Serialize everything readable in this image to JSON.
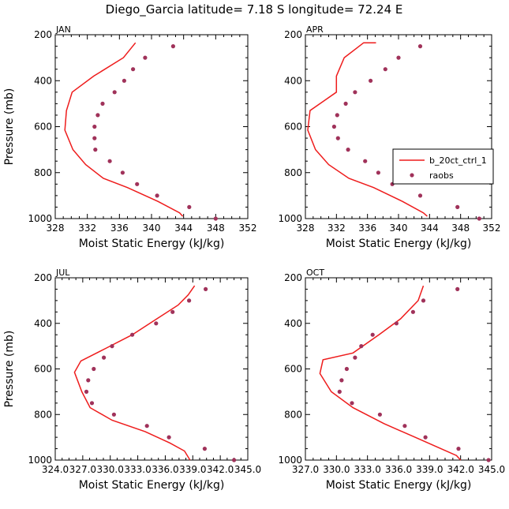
{
  "title": "Diego_Garcia  latitude= 7.18 S longitude= 72.24 E",
  "colors": {
    "model": "#ee1c1c",
    "obs": "#a0325a",
    "axis": "#000000"
  },
  "legend": {
    "model_label": "b_20ct_ctrl_1",
    "obs_label": "raobs",
    "placement": "right, inside APR panel"
  },
  "chart_data": [
    {
      "type": "line",
      "panel": "JAN",
      "xlabel": "Moist Static Energy (kJ/kg)",
      "ylabel": "Pressure (mb)",
      "xlim": [
        328,
        352
      ],
      "ylim": [
        1000,
        200
      ],
      "y_reversed": true,
      "xticks": [
        328,
        332,
        336,
        340,
        344,
        348,
        352
      ],
      "xtick_labels": [
        "328",
        "332",
        "336",
        "340",
        "344",
        "348",
        "352"
      ],
      "yticks": [
        200,
        400,
        600,
        800,
        1000
      ],
      "ytick_labels": [
        "200",
        "400",
        "600",
        "800",
        "1000"
      ],
      "series": [
        {
          "name": "b_20ct_ctrl_1",
          "kind": "line",
          "x": [
            343.9,
            343.5,
            340.8,
            337.0,
            334.0,
            331.8,
            330.2,
            329.2,
            329.4,
            330.1,
            332.8,
            336.5,
            338.0
          ],
          "y": [
            990,
            975,
            925,
            865,
            825,
            765,
            700,
            615,
            530,
            450,
            380,
            300,
            235
          ]
        },
        {
          "name": "raobs",
          "kind": "scatter",
          "x": [
            348.0,
            344.7,
            340.7,
            338.2,
            336.4,
            334.8,
            333.0,
            332.9,
            332.9,
            333.3,
            333.9,
            335.4,
            336.6,
            337.7,
            339.2,
            342.7
          ],
          "y": [
            1000,
            950,
            900,
            850,
            800,
            750,
            700,
            650,
            600,
            550,
            500,
            450,
            400,
            350,
            300,
            250
          ]
        }
      ]
    },
    {
      "type": "line",
      "panel": "APR",
      "xlabel": "Moist Static Energy (kJ/kg)",
      "ylabel": "",
      "xlim": [
        328,
        352
      ],
      "ylim": [
        1000,
        200
      ],
      "y_reversed": true,
      "xticks": [
        328,
        332,
        336,
        340,
        344,
        348,
        352
      ],
      "xtick_labels": [
        "328",
        "332",
        "336",
        "340",
        "344",
        "348",
        "352"
      ],
      "yticks": [
        200,
        400,
        600,
        800,
        1000
      ],
      "ytick_labels": [
        "200",
        "400",
        "600",
        "800",
        "1000"
      ],
      "series": [
        {
          "name": "b_20ct_ctrl_1",
          "kind": "line",
          "x": [
            343.7,
            343.2,
            340.5,
            336.8,
            333.6,
            331.0,
            329.3,
            328.3,
            328.6,
            332.0,
            332.0,
            333.0,
            335.5,
            337.1
          ],
          "y": [
            990,
            975,
            925,
            865,
            825,
            765,
            700,
            615,
            530,
            450,
            380,
            300,
            235,
            235
          ]
        },
        {
          "name": "raobs",
          "kind": "scatter",
          "x": [
            350.4,
            347.6,
            342.8,
            339.2,
            337.4,
            335.7,
            333.5,
            332.2,
            331.7,
            332.1,
            333.2,
            334.4,
            336.4,
            338.3,
            340.0,
            342.8
          ],
          "y": [
            1000,
            950,
            900,
            850,
            800,
            750,
            700,
            650,
            600,
            550,
            500,
            450,
            400,
            350,
            300,
            250
          ]
        }
      ]
    },
    {
      "type": "line",
      "panel": "JUL",
      "xlabel": "Moist Static Energy (kJ/kg)",
      "ylabel": "Pressure (mb)",
      "xlim": [
        324.0,
        345.0
      ],
      "ylim": [
        1000,
        200
      ],
      "y_reversed": true,
      "xticks": [
        324.0,
        327.0,
        330.0,
        333.0,
        336.0,
        339.0,
        342.0,
        345.0
      ],
      "xtick_labels": [
        "324.0",
        "327.0",
        "330.0",
        "333.0",
        "336.0",
        "339.0",
        "342.0",
        "345.0"
      ],
      "yticks": [
        200,
        400,
        600,
        800,
        1000
      ],
      "ytick_labels": [
        "200",
        "400",
        "600",
        "800",
        "1000"
      ],
      "series": [
        {
          "name": "b_20ct_ctrl_1",
          "kind": "line",
          "x": [
            338.7,
            338.1,
            336.5,
            333.8,
            330.2,
            327.8,
            326.9,
            326.1,
            326.8,
            329.5,
            332.4,
            334.7,
            337.4,
            338.5,
            339.2
          ],
          "y": [
            1000,
            960,
            925,
            875,
            825,
            770,
            700,
            615,
            565,
            510,
            450,
            390,
            320,
            275,
            235
          ]
        },
        {
          "name": "raobs",
          "kind": "scatter",
          "x": [
            343.5,
            340.3,
            336.4,
            334.0,
            330.4,
            328.0,
            327.4,
            327.6,
            328.2,
            329.3,
            330.2,
            332.4,
            335.0,
            336.8,
            338.6,
            340.4
          ],
          "y": [
            1000,
            950,
            900,
            850,
            800,
            750,
            700,
            650,
            600,
            550,
            500,
            450,
            400,
            350,
            300,
            250
          ]
        }
      ]
    },
    {
      "type": "line",
      "panel": "OCT",
      "xlabel": "Moist Static Energy (kJ/kg)",
      "ylabel": "",
      "xlim": [
        327.0,
        345.0
      ],
      "ylim": [
        1000,
        200
      ],
      "y_reversed": true,
      "xticks": [
        327.0,
        330.0,
        333.0,
        336.0,
        339.0,
        342.0,
        345.0
      ],
      "xtick_labels": [
        "327.0",
        "330.0",
        "333.0",
        "336.0",
        "339.0",
        "342.0",
        "345.0"
      ],
      "yticks": [
        200,
        400,
        600,
        800,
        1000
      ],
      "ytick_labels": [
        "200",
        "400",
        "600",
        "800",
        "1000"
      ],
      "series": [
        {
          "name": "b_20ct_ctrl_1",
          "kind": "line",
          "x": [
            342.0,
            341.6,
            340.1,
            337.6,
            334.6,
            331.6,
            329.5,
            328.4,
            328.7,
            331.6,
            334.1,
            336.2,
            337.9,
            338.4
          ],
          "y": [
            1000,
            980,
            950,
            900,
            840,
            770,
            700,
            620,
            560,
            530,
            450,
            380,
            300,
            235
          ]
        },
        {
          "name": "raobs",
          "kind": "scatter",
          "x": [
            344.7,
            341.8,
            338.6,
            336.6,
            334.2,
            331.5,
            330.3,
            330.5,
            331.0,
            331.8,
            332.4,
            333.5,
            335.8,
            337.4,
            338.4,
            341.7
          ],
          "y": [
            1000,
            950,
            900,
            850,
            800,
            750,
            700,
            650,
            600,
            550,
            500,
            450,
            400,
            350,
            300,
            250
          ]
        }
      ]
    }
  ]
}
